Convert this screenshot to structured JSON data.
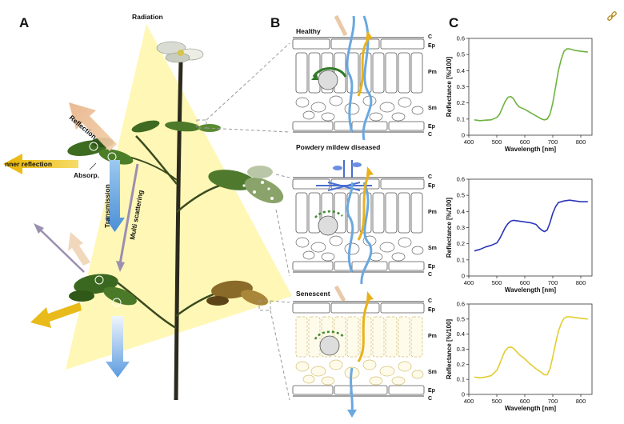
{
  "panels": {
    "a": "A",
    "b": "B",
    "c": "C"
  },
  "plant": {
    "radiation": "Radiation",
    "reflection": "Reflection",
    "inner_reflection": "nner reflection",
    "absorption": "Absorp.",
    "transmission": "Transmission",
    "multi_scattering": "Multi scattering"
  },
  "cross_sections": [
    {
      "title": "Healthy",
      "layers": {
        "c_top": "C",
        "ep_top": "Ep",
        "pm": "Pm",
        "sm": "Sm",
        "ep_bottom": "Ep",
        "c_bottom": "C"
      }
    },
    {
      "title": "Powdery mildew diseased",
      "layers": {
        "c_top": "C",
        "ep_top": "Ep",
        "pm": "Pm",
        "sm": "Sm",
        "ep_bottom": "Ep",
        "c_bottom": "C"
      }
    },
    {
      "title": "Senescent",
      "layers": {
        "c_top": "C",
        "ep_top": "Ep",
        "pm": "Pm",
        "sm": "Sm",
        "ep_bottom": "Ep",
        "c_bottom": "C"
      }
    }
  ],
  "colors": {
    "healthy": "#6db33f",
    "diseased": "#2a35b8",
    "senescent": "#e3cc2e",
    "transmission_arrow": "#6aa8e0",
    "reflection_arrow": "#e9b98f",
    "inner_reflection_arrow": "#f0c419",
    "radiation_cone": "#fff6a8"
  },
  "icons": {
    "link": "link-icon"
  },
  "chart_data": [
    {
      "type": "line",
      "xlabel": "Wavelength [nm]",
      "ylabel": "Reflectance [%/100]",
      "xlim": [
        400,
        840
      ],
      "ylim": [
        0,
        0.6
      ],
      "xticks": [
        400,
        500,
        600,
        700,
        800
      ],
      "yticks": [
        0,
        0.1,
        0.2,
        0.3,
        0.4,
        0.5,
        0.6
      ],
      "series": [
        {
          "color": "#6db33f",
          "x": [
            420,
            440,
            460,
            480,
            500,
            510,
            520,
            530,
            540,
            550,
            560,
            570,
            580,
            600,
            620,
            640,
            660,
            670,
            680,
            690,
            700,
            710,
            720,
            730,
            740,
            750,
            760,
            780,
            800,
            825
          ],
          "y": [
            0.095,
            0.09,
            0.093,
            0.095,
            0.11,
            0.13,
            0.17,
            0.21,
            0.235,
            0.24,
            0.225,
            0.195,
            0.175,
            0.16,
            0.14,
            0.12,
            0.1,
            0.095,
            0.1,
            0.13,
            0.2,
            0.3,
            0.4,
            0.47,
            0.52,
            0.535,
            0.535,
            0.525,
            0.52,
            0.515
          ]
        }
      ]
    },
    {
      "type": "line",
      "xlabel": "Wavelength [nm]",
      "ylabel": "Reflectance [%/100]",
      "xlim": [
        400,
        840
      ],
      "ylim": [
        0,
        0.6
      ],
      "xticks": [
        400,
        500,
        600,
        700,
        800
      ],
      "yticks": [
        0,
        0.1,
        0.2,
        0.3,
        0.4,
        0.5,
        0.6
      ],
      "series": [
        {
          "color": "#2a35b8",
          "x": [
            420,
            440,
            460,
            480,
            500,
            510,
            520,
            530,
            540,
            550,
            560,
            580,
            600,
            620,
            640,
            650,
            660,
            670,
            680,
            690,
            700,
            710,
            720,
            740,
            760,
            780,
            800,
            825
          ],
          "y": [
            0.155,
            0.165,
            0.18,
            0.19,
            0.205,
            0.23,
            0.265,
            0.3,
            0.325,
            0.34,
            0.345,
            0.34,
            0.335,
            0.33,
            0.32,
            0.3,
            0.285,
            0.275,
            0.285,
            0.33,
            0.39,
            0.43,
            0.455,
            0.465,
            0.47,
            0.465,
            0.46,
            0.46
          ]
        }
      ]
    },
    {
      "type": "line",
      "xlabel": "Wavelength [nm]",
      "ylabel": "Reflectance [%/100]",
      "xlim": [
        400,
        840
      ],
      "ylim": [
        0,
        0.6
      ],
      "xticks": [
        400,
        500,
        600,
        700,
        800
      ],
      "yticks": [
        0,
        0.1,
        0.2,
        0.3,
        0.4,
        0.5,
        0.6
      ],
      "series": [
        {
          "color": "#e3cc2e",
          "x": [
            420,
            440,
            460,
            480,
            500,
            510,
            520,
            530,
            540,
            550,
            560,
            570,
            580,
            600,
            620,
            640,
            660,
            670,
            680,
            690,
            700,
            710,
            720,
            730,
            740,
            750,
            760,
            780,
            800,
            825
          ],
          "y": [
            0.115,
            0.11,
            0.115,
            0.125,
            0.16,
            0.2,
            0.25,
            0.29,
            0.31,
            0.315,
            0.305,
            0.285,
            0.265,
            0.235,
            0.2,
            0.17,
            0.145,
            0.13,
            0.13,
            0.17,
            0.25,
            0.34,
            0.42,
            0.47,
            0.505,
            0.515,
            0.515,
            0.51,
            0.505,
            0.5
          ]
        }
      ]
    }
  ]
}
